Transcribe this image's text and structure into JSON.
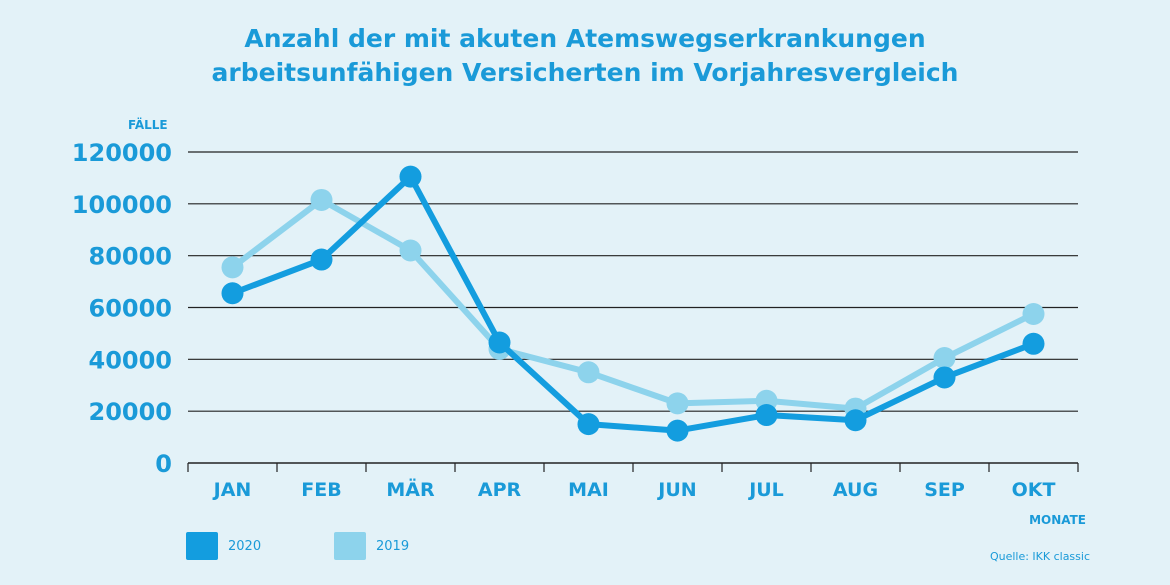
{
  "title": {
    "line1": "Anzahl der mit akuten Atemswegserkrankungen",
    "line2": "arbeitsunfähigen Versicherten im Vorjahresvergleich"
  },
  "source": "Quelle: IKK classic",
  "colors": {
    "accent": "#1a9ad8",
    "series_2020": "#139ddf",
    "series_2019": "#8dd3ec",
    "grid": "#222222",
    "background": "#e3f2f8"
  },
  "chart_data": {
    "type": "line",
    "title": "Anzahl der mit akuten Atemswegserkrankungen arbeitsunfähigen Versicherten im Vorjahresvergleich",
    "ylabel": "FÄLLE",
    "xlabel": "MONATE",
    "categories": [
      "JAN",
      "FEB",
      "MÄR",
      "APR",
      "MAI",
      "JUN",
      "JUL",
      "AUG",
      "SEP",
      "OKT"
    ],
    "ylim": [
      0,
      120000
    ],
    "yticks": [
      "0",
      "20000",
      "40000",
      "60000",
      "80000",
      "100000",
      "120000"
    ],
    "grid": true,
    "legend_position": "bottom-left",
    "series": [
      {
        "name": "2019",
        "values": [
          75500,
          101500,
          82000,
          44000,
          35000,
          23000,
          24000,
          21000,
          40500,
          57500
        ]
      },
      {
        "name": "2020",
        "values": [
          65500,
          78500,
          110500,
          46500,
          15000,
          12500,
          18500,
          16500,
          33000,
          46000
        ]
      }
    ]
  }
}
